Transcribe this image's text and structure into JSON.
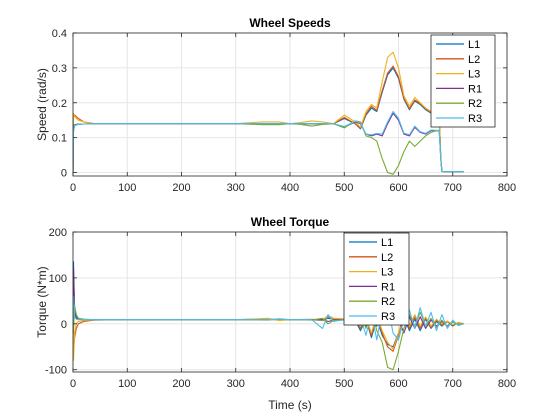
{
  "colors": {
    "L1": "#0072BD",
    "L2": "#D95319",
    "L3": "#EDB120",
    "R1": "#7E2F8E",
    "R2": "#77AC30",
    "R3": "#4DBEEE"
  },
  "chart_data": [
    {
      "type": "line",
      "title": "Wheel Speeds",
      "xlabel": "",
      "ylabel": "Speed (rad/s)",
      "xlim": [
        0,
        800
      ],
      "ylim": [
        -0.01,
        0.4
      ],
      "xticks": [
        0,
        100,
        200,
        300,
        400,
        500,
        600,
        700,
        800
      ],
      "yticks": [
        0,
        0.1,
        0.2,
        0.3,
        0.4
      ],
      "ytick_labels": [
        "0",
        "0.1",
        "0.2",
        "0.3",
        "0.4"
      ],
      "grid": true,
      "legend_position": "top-right",
      "series": [
        {
          "name": "L1",
          "x": [
            0,
            1,
            3,
            10,
            20,
            40,
            100,
            200,
            300,
            350,
            380,
            400,
            420,
            440,
            460,
            480,
            500,
            520,
            530,
            540,
            550,
            560,
            570,
            580,
            590,
            600,
            610,
            620,
            630,
            640,
            650,
            660,
            670,
            675,
            678,
            680,
            690,
            700,
            710,
            720
          ],
          "y": [
            0,
            0.12,
            0.135,
            0.138,
            0.139,
            0.14,
            0.14,
            0.14,
            0.14,
            0.14,
            0.14,
            0.14,
            0.14,
            0.14,
            0.14,
            0.14,
            0.155,
            0.14,
            0.125,
            0.165,
            0.185,
            0.175,
            0.23,
            0.28,
            0.3,
            0.27,
            0.21,
            0.18,
            0.205,
            0.195,
            0.18,
            0.17,
            0.17,
            0.17,
            0.04,
            0.003,
            0.002,
            0.003,
            0.002,
            0.002
          ]
        },
        {
          "name": "L2",
          "x": [
            0,
            1,
            3,
            10,
            20,
            40,
            100,
            200,
            300,
            350,
            380,
            400,
            420,
            440,
            460,
            480,
            500,
            520,
            530,
            540,
            550,
            560,
            570,
            580,
            590,
            600,
            610,
            620,
            630,
            640,
            650,
            660,
            670,
            675,
            678,
            680,
            690,
            700,
            710,
            720
          ],
          "y": [
            0,
            0.16,
            0.165,
            0.155,
            0.145,
            0.14,
            0.14,
            0.14,
            0.14,
            0.14,
            0.14,
            0.14,
            0.14,
            0.14,
            0.14,
            0.14,
            0.158,
            0.14,
            0.127,
            0.168,
            0.19,
            0.178,
            0.235,
            0.285,
            0.305,
            0.275,
            0.213,
            0.183,
            0.208,
            0.198,
            0.183,
            0.172,
            0.172,
            0.172,
            0.04,
            0.003,
            0.002,
            0.003,
            0.002,
            0.002
          ]
        },
        {
          "name": "L3",
          "x": [
            0,
            1,
            3,
            10,
            20,
            40,
            100,
            200,
            300,
            350,
            380,
            400,
            420,
            440,
            460,
            480,
            500,
            520,
            530,
            540,
            550,
            560,
            570,
            580,
            590,
            600,
            610,
            620,
            630,
            640,
            650,
            660,
            670,
            675,
            678,
            680,
            690,
            700,
            710,
            720
          ],
          "y": [
            0,
            0.17,
            0.16,
            0.15,
            0.145,
            0.14,
            0.14,
            0.14,
            0.14,
            0.145,
            0.145,
            0.14,
            0.143,
            0.148,
            0.145,
            0.14,
            0.165,
            0.145,
            0.13,
            0.175,
            0.195,
            0.185,
            0.26,
            0.33,
            0.345,
            0.3,
            0.22,
            0.19,
            0.215,
            0.2,
            0.185,
            0.175,
            0.17,
            0.17,
            0.04,
            0.003,
            0.002,
            0.003,
            0.002,
            0.002
          ]
        },
        {
          "name": "R1",
          "x": [
            0,
            1,
            3,
            10,
            20,
            40,
            100,
            200,
            300,
            350,
            380,
            400,
            420,
            440,
            460,
            480,
            500,
            520,
            530,
            540,
            550,
            560,
            570,
            580,
            590,
            600,
            610,
            620,
            630,
            640,
            650,
            660,
            670,
            675,
            678,
            680,
            690,
            700,
            710,
            720
          ],
          "y": [
            0,
            0.13,
            0.137,
            0.139,
            0.139,
            0.14,
            0.14,
            0.14,
            0.14,
            0.14,
            0.14,
            0.14,
            0.14,
            0.14,
            0.14,
            0.14,
            0.13,
            0.145,
            0.14,
            0.11,
            0.105,
            0.11,
            0.105,
            0.14,
            0.17,
            0.15,
            0.11,
            0.105,
            0.13,
            0.115,
            0.11,
            0.12,
            0.12,
            0.12,
            0.04,
            0.003,
            0.002,
            0.003,
            0.002,
            0.002
          ]
        },
        {
          "name": "R2",
          "x": [
            0,
            1,
            3,
            10,
            20,
            40,
            100,
            200,
            300,
            350,
            380,
            400,
            420,
            440,
            460,
            480,
            500,
            520,
            530,
            540,
            550,
            560,
            570,
            580,
            590,
            600,
            610,
            620,
            630,
            640,
            650,
            660,
            670,
            675,
            678,
            680,
            690,
            700,
            710,
            720
          ],
          "y": [
            0,
            0.12,
            0.135,
            0.138,
            0.139,
            0.14,
            0.14,
            0.14,
            0.14,
            0.137,
            0.137,
            0.14,
            0.138,
            0.133,
            0.138,
            0.14,
            0.128,
            0.148,
            0.145,
            0.105,
            0.1,
            0.09,
            0.04,
            0.0,
            -0.005,
            0.02,
            0.06,
            0.09,
            0.075,
            0.09,
            0.105,
            0.115,
            0.12,
            0.12,
            0.04,
            0.003,
            0.002,
            0.003,
            0.002,
            0.002
          ]
        },
        {
          "name": "R3",
          "x": [
            0,
            1,
            3,
            10,
            20,
            40,
            100,
            200,
            300,
            350,
            380,
            400,
            420,
            440,
            460,
            480,
            500,
            520,
            530,
            540,
            550,
            560,
            570,
            580,
            590,
            600,
            610,
            620,
            630,
            640,
            650,
            660,
            670,
            675,
            678,
            680,
            690,
            700,
            710,
            720
          ],
          "y": [
            0,
            0.12,
            0.135,
            0.138,
            0.139,
            0.14,
            0.14,
            0.14,
            0.14,
            0.14,
            0.14,
            0.14,
            0.14,
            0.14,
            0.14,
            0.14,
            0.132,
            0.147,
            0.142,
            0.11,
            0.108,
            0.112,
            0.11,
            0.145,
            0.175,
            0.155,
            0.113,
            0.108,
            0.133,
            0.117,
            0.112,
            0.122,
            0.121,
            0.121,
            0.04,
            0.003,
            0.002,
            0.003,
            0.002,
            0.002
          ]
        }
      ]
    },
    {
      "type": "line",
      "title": "Wheel Torque",
      "xlabel": "Time (s)",
      "ylabel": "Torque (N*m)",
      "xlim": [
        0,
        800
      ],
      "ylim": [
        -105,
        200
      ],
      "xticks": [
        0,
        100,
        200,
        300,
        400,
        500,
        600,
        700,
        800
      ],
      "yticks": [
        -100,
        0,
        100,
        200
      ],
      "ytick_labels": [
        "-100",
        "0",
        "100",
        "200"
      ],
      "grid": true,
      "legend_position": "top-center",
      "series": [
        {
          "name": "L1",
          "x": [
            0,
            1,
            3,
            6,
            10,
            20,
            40,
            100,
            200,
            300,
            360,
            380,
            400,
            440,
            460,
            470,
            480,
            500,
            520,
            530,
            540,
            550,
            560,
            570,
            580,
            590,
            600,
            610,
            620,
            630,
            640,
            650,
            660,
            670,
            680,
            690,
            700,
            710,
            720
          ],
          "y": [
            0,
            135,
            30,
            15,
            10,
            9,
            9,
            9,
            9,
            9,
            10,
            8,
            9,
            9,
            7,
            12,
            10,
            10,
            8,
            -15,
            10,
            -30,
            10,
            -25,
            -45,
            -50,
            -20,
            15,
            -15,
            10,
            -15,
            10,
            -10,
            5,
            -5,
            5,
            -5,
            3,
            0
          ]
        },
        {
          "name": "L2",
          "x": [
            0,
            1,
            3,
            6,
            10,
            20,
            40,
            100,
            200,
            300,
            360,
            380,
            400,
            440,
            460,
            470,
            480,
            500,
            520,
            530,
            540,
            550,
            560,
            570,
            580,
            590,
            600,
            610,
            620,
            630,
            640,
            650,
            660,
            670,
            680,
            690,
            700,
            710,
            720
          ],
          "y": [
            0,
            -60,
            -30,
            -10,
            0,
            5,
            8,
            9,
            9,
            9,
            11,
            8,
            9,
            9,
            8,
            15,
            10,
            10,
            9,
            -10,
            12,
            -25,
            15,
            -20,
            -50,
            -60,
            -25,
            20,
            -10,
            15,
            -10,
            12,
            -8,
            8,
            -3,
            5,
            -3,
            2,
            0
          ]
        },
        {
          "name": "L3",
          "x": [
            0,
            1,
            3,
            6,
            10,
            20,
            40,
            100,
            200,
            300,
            360,
            380,
            400,
            440,
            460,
            470,
            480,
            500,
            520,
            530,
            540,
            550,
            560,
            570,
            580,
            590,
            600,
            610,
            620,
            630,
            640,
            650,
            660,
            670,
            680,
            690,
            700,
            710,
            720
          ],
          "y": [
            0,
            -80,
            -20,
            0,
            5,
            7,
            8,
            9,
            9,
            9,
            12,
            7,
            9,
            10,
            8,
            18,
            12,
            11,
            10,
            -5,
            15,
            -20,
            20,
            -15,
            -40,
            -55,
            -20,
            25,
            -5,
            20,
            -5,
            15,
            -5,
            10,
            0,
            6,
            -2,
            3,
            0
          ]
        },
        {
          "name": "R1",
          "x": [
            0,
            1,
            3,
            6,
            10,
            20,
            40,
            100,
            200,
            300,
            360,
            380,
            400,
            440,
            460,
            470,
            480,
            500,
            520,
            530,
            540,
            550,
            560,
            570,
            580,
            590,
            600,
            610,
            620,
            630,
            640,
            650,
            660,
            670,
            680,
            690,
            700,
            710,
            720
          ],
          "y": [
            0,
            120,
            25,
            12,
            10,
            9,
            9,
            9,
            9,
            9,
            9,
            10,
            9,
            9,
            10,
            5,
            8,
            9,
            10,
            20,
            -5,
            30,
            -5,
            35,
            60,
            40,
            10,
            -20,
            15,
            -10,
            15,
            -10,
            8,
            -5,
            5,
            -5,
            5,
            -3,
            0
          ]
        },
        {
          "name": "R2",
          "x": [
            0,
            1,
            3,
            6,
            10,
            20,
            40,
            100,
            200,
            300,
            360,
            380,
            400,
            440,
            460,
            470,
            480,
            500,
            520,
            530,
            540,
            550,
            560,
            570,
            580,
            590,
            600,
            610,
            620,
            630,
            640,
            650,
            660,
            670,
            680,
            690,
            700,
            710,
            720
          ],
          "y": [
            0,
            -20,
            40,
            20,
            12,
            10,
            9,
            9,
            9,
            9,
            8,
            11,
            9,
            8,
            12,
            0,
            7,
            8,
            12,
            25,
            -10,
            35,
            -15,
            -40,
            -95,
            -100,
            -60,
            -10,
            20,
            -5,
            25,
            -5,
            12,
            -8,
            8,
            -6,
            4,
            -2,
            0
          ]
        },
        {
          "name": "R3",
          "x": [
            0,
            1,
            3,
            6,
            10,
            20,
            40,
            100,
            200,
            300,
            360,
            380,
            400,
            440,
            460,
            470,
            480,
            500,
            520,
            530,
            540,
            550,
            560,
            570,
            580,
            590,
            600,
            610,
            620,
            630,
            640,
            650,
            660,
            670,
            680,
            690,
            700,
            710,
            720
          ],
          "y": [
            0,
            60,
            15,
            10,
            9,
            9,
            9,
            9,
            9,
            9,
            9,
            10,
            9,
            9,
            -10,
            20,
            5,
            9,
            11,
            15,
            -25,
            25,
            -35,
            30,
            40,
            -20,
            -35,
            10,
            30,
            -10,
            35,
            -5,
            25,
            -15,
            20,
            -10,
            8,
            -4,
            0
          ]
        }
      ]
    }
  ]
}
